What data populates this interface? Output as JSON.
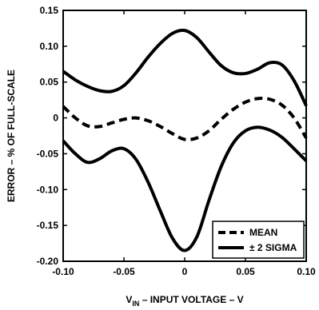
{
  "chart_data": {
    "type": "line",
    "title": "",
    "xlabel_main": "V",
    "xlabel_sub": "IN",
    "xlabel_rest": " – INPUT VOLTAGE – V",
    "ylabel": "ERROR – % OF FULL-SCALE",
    "xlim": [
      -0.1,
      0.1
    ],
    "ylim": [
      -0.2,
      0.15
    ],
    "xticks": [
      -0.1,
      -0.05,
      0,
      0.05,
      0.1
    ],
    "xtick_labels": [
      "-0.10",
      "-0.05",
      "0",
      "0.05",
      "0.10"
    ],
    "yticks": [
      0.15,
      0.1,
      0.05,
      0,
      -0.05,
      -0.1,
      -0.15,
      -0.2
    ],
    "ytick_labels": [
      "0.15",
      "0.10",
      "0.05",
      "0",
      "-0.05",
      "-0.10",
      "-0.15",
      "-0.20"
    ],
    "grid": false,
    "legend": {
      "placement": "bottom-right",
      "entries": [
        {
          "label": "MEAN",
          "style": "dashed"
        },
        {
          "label": "± 2 SIGMA",
          "style": "solid"
        }
      ]
    },
    "series": [
      {
        "role": "mean",
        "style": "dashed",
        "x": [
          -0.1,
          -0.09,
          -0.08,
          -0.07,
          -0.06,
          -0.05,
          -0.04,
          -0.03,
          -0.02,
          -0.01,
          0,
          0.01,
          0.02,
          0.03,
          0.04,
          0.05,
          0.06,
          0.07,
          0.08,
          0.09,
          0.1
        ],
        "y": [
          0.016,
          0.0,
          -0.011,
          -0.012,
          -0.007,
          -0.002,
          0.0,
          -0.004,
          -0.012,
          -0.022,
          -0.03,
          -0.028,
          -0.018,
          -0.002,
          0.012,
          0.022,
          0.027,
          0.026,
          0.018,
          0.0,
          -0.028
        ]
      },
      {
        "role": "upper",
        "style": "solid",
        "x": [
          -0.1,
          -0.09,
          -0.08,
          -0.07,
          -0.06,
          -0.05,
          -0.04,
          -0.03,
          -0.02,
          -0.01,
          0,
          0.01,
          0.02,
          0.03,
          0.04,
          0.05,
          0.06,
          0.07,
          0.08,
          0.09,
          0.1
        ],
        "y": [
          0.065,
          0.053,
          0.044,
          0.038,
          0.037,
          0.045,
          0.063,
          0.085,
          0.104,
          0.118,
          0.122,
          0.112,
          0.092,
          0.073,
          0.063,
          0.062,
          0.068,
          0.077,
          0.074,
          0.052,
          0.017
        ]
      },
      {
        "role": "lower",
        "style": "solid",
        "x": [
          -0.1,
          -0.09,
          -0.08,
          -0.07,
          -0.06,
          -0.05,
          -0.04,
          -0.03,
          -0.02,
          -0.01,
          0,
          0.01,
          0.02,
          0.03,
          0.04,
          0.05,
          0.06,
          0.07,
          0.08,
          0.09,
          0.1
        ],
        "y": [
          -0.032,
          -0.05,
          -0.062,
          -0.057,
          -0.046,
          -0.043,
          -0.058,
          -0.09,
          -0.13,
          -0.168,
          -0.185,
          -0.166,
          -0.115,
          -0.068,
          -0.035,
          -0.018,
          -0.013,
          -0.017,
          -0.027,
          -0.043,
          -0.06
        ]
      }
    ]
  }
}
